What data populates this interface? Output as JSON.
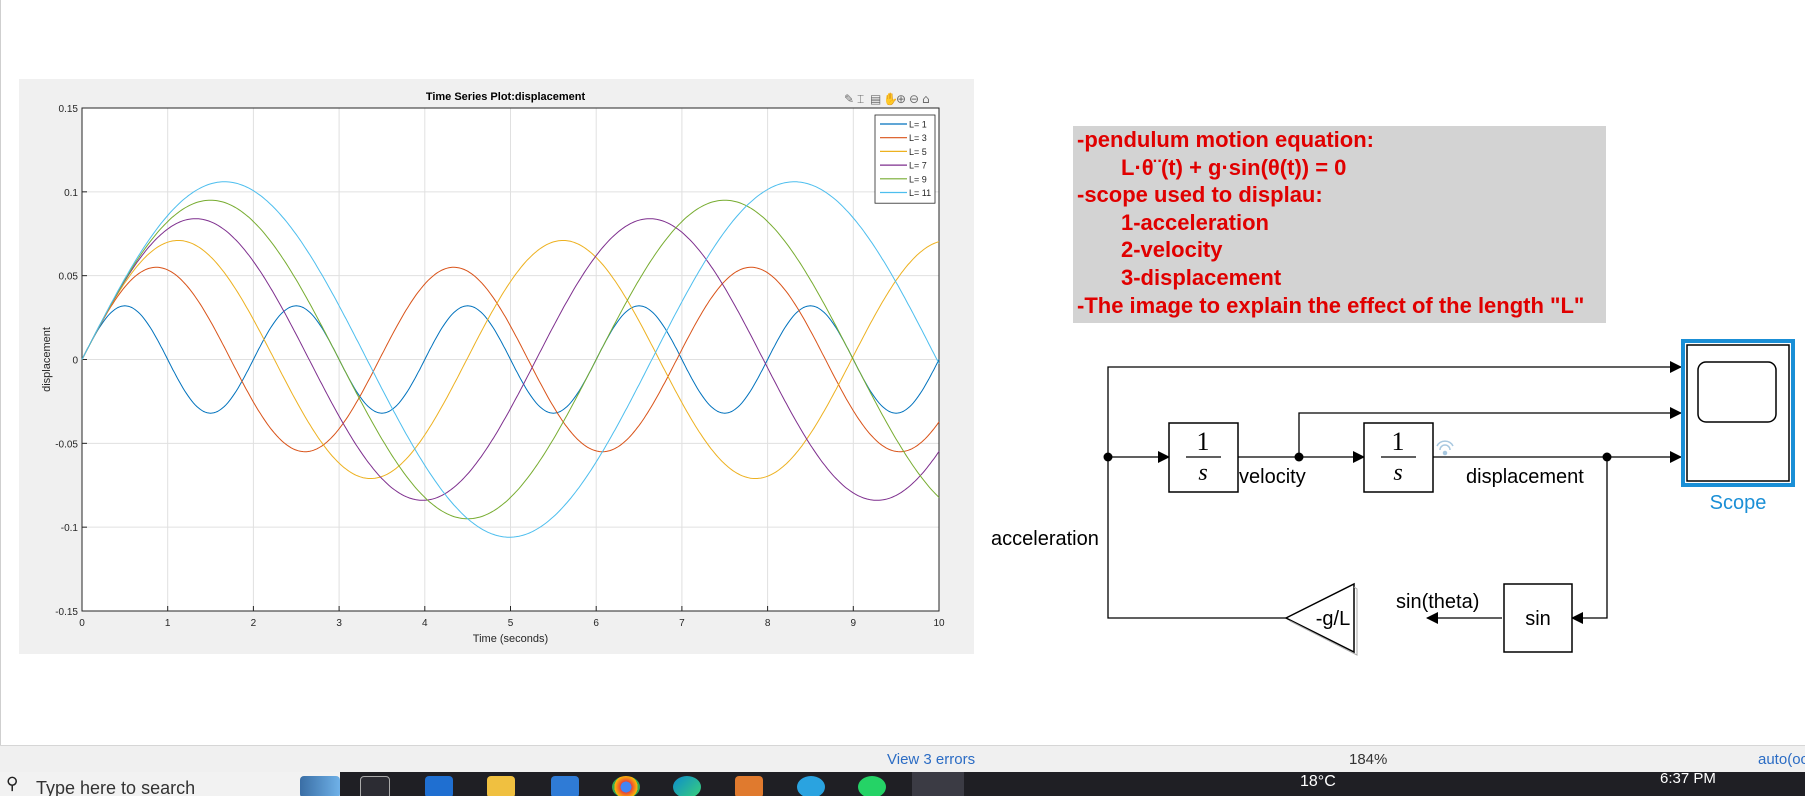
{
  "plot": {
    "title": "Time Series Plot:displacement",
    "xlabel": "Time (seconds)",
    "ylabel": "displacement",
    "xticks": [
      "0",
      "1",
      "2",
      "3",
      "4",
      "5",
      "6",
      "7",
      "8",
      "9",
      "10"
    ],
    "yticks": [
      "0.15",
      "0.1",
      "0.05",
      "0",
      "-0.05",
      "-0.1",
      "-0.15"
    ],
    "toolbar_icons": [
      "brush-icon",
      "data-cursor-icon",
      "data-tips-icon",
      "pan-icon",
      "zoom-in-icon",
      "zoom-out-icon",
      "home-icon"
    ]
  },
  "chart_data": {
    "type": "line",
    "title": "Time Series Plot:displacement",
    "xlabel": "Time (seconds)",
    "ylabel": "displacement",
    "xlim": [
      0,
      10
    ],
    "ylim": [
      -0.15,
      0.15
    ],
    "grid": true,
    "legend_position": "top-right",
    "series": [
      {
        "name": "L= 1",
        "color": "#0072bd",
        "amplitude": 0.032,
        "period": 2.0
      },
      {
        "name": "L= 3",
        "color": "#d95319",
        "amplitude": 0.055,
        "period": 3.47
      },
      {
        "name": "L= 5",
        "color": "#edb120",
        "amplitude": 0.071,
        "period": 4.49
      },
      {
        "name": "L= 7",
        "color": "#7e2f8e",
        "amplitude": 0.084,
        "period": 5.3
      },
      {
        "name": "L= 9",
        "color": "#77ac30",
        "amplitude": 0.095,
        "period": 6.0
      },
      {
        "name": "L= 11",
        "color": "#4dbeee",
        "amplitude": 0.106,
        "period": 6.65
      }
    ]
  },
  "notes": {
    "line1": "-pendulum motion equation:",
    "line2": "L·θ¨(t) + g·sin(θ(t)) = 0",
    "line3": "-scope used to displau:",
    "line4": "1-acceleration",
    "line5": "2-velocity",
    "line6": "3-displacement",
    "line7": "-The image to explain the effect of the length \"L\""
  },
  "diagram": {
    "integrator_num": "1",
    "integrator_den": "s",
    "label_velocity": "velocity",
    "label_displacement": "displacement",
    "label_acceleration": "acceleration",
    "label_sin_theta": "sin(theta)",
    "sin_block": "sin",
    "gain_block": "-g/L",
    "scope_label": "Scope",
    "scope_color": "#1a8fd6"
  },
  "statusbar": {
    "errors": "View 3 errors",
    "zoom": "184%",
    "mode": "auto(oc"
  },
  "taskbar": {
    "search_placeholder": "Type here to search",
    "weather": "18°C",
    "time": "6:37 PM"
  }
}
